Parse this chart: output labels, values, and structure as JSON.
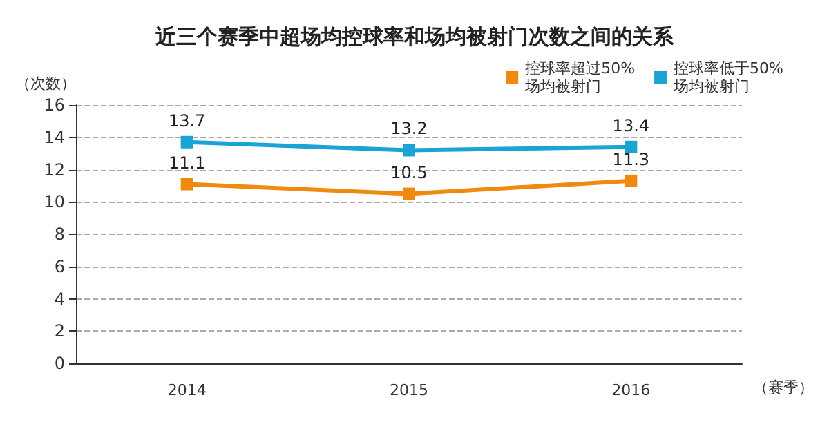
{
  "chart_data": {
    "type": "line",
    "title": "近三个赛季中超场均控球率和场均被射门次数之间的关系",
    "xlabel": "（赛季）",
    "ylabel": "（次数）",
    "categories": [
      "2014",
      "2015",
      "2016"
    ],
    "series": [
      {
        "name": "控球率超过50%\n场均被射门",
        "color": "#ee8b0f",
        "values": [
          11.1,
          10.5,
          11.3
        ]
      },
      {
        "name": "控球率低于50%\n场均被射门",
        "color": "#1aa3d4",
        "values": [
          13.7,
          13.2,
          13.4
        ]
      }
    ],
    "ylim": [
      0,
      16
    ],
    "yticks": [
      0,
      2,
      4,
      6,
      8,
      10,
      12,
      14,
      16
    ],
    "grid": "y",
    "legend": "top right",
    "marker": "square",
    "line_style": "solid",
    "data_labels": true
  }
}
